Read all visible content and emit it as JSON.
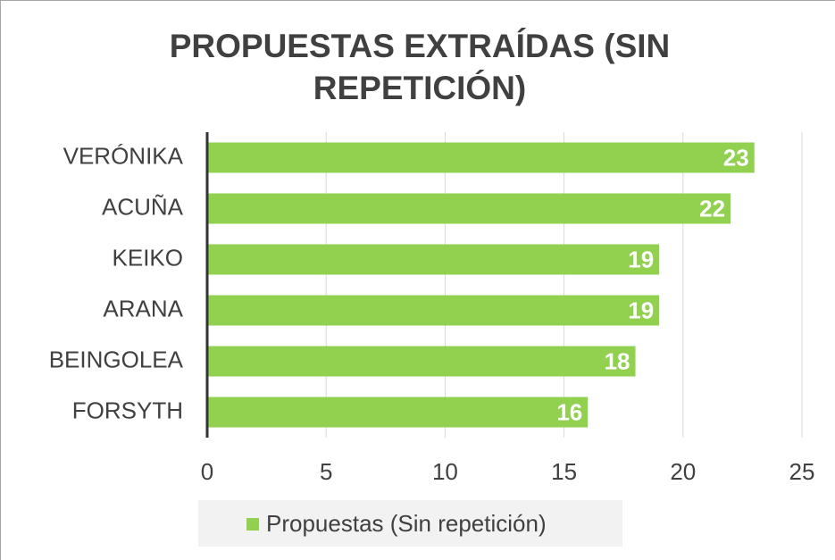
{
  "chart_data": {
    "type": "bar",
    "orientation": "horizontal",
    "title": "PROPUESTAS EXTRAÍDAS (SIN REPETICIÓN)",
    "categories": [
      "VERÓNIKA",
      "ACUÑA",
      "KEIKO",
      "ARANA",
      "BEINGOLEA",
      "FORSYTH"
    ],
    "series": [
      {
        "name": "Propuestas (Sin repetición)",
        "color": "#92d050",
        "values": [
          23,
          22,
          19,
          19,
          18,
          16
        ]
      }
    ],
    "xlim": [
      0,
      25
    ],
    "xticks": [
      0,
      5,
      10,
      15,
      20,
      25
    ],
    "grid": true,
    "legend": "bottom"
  }
}
